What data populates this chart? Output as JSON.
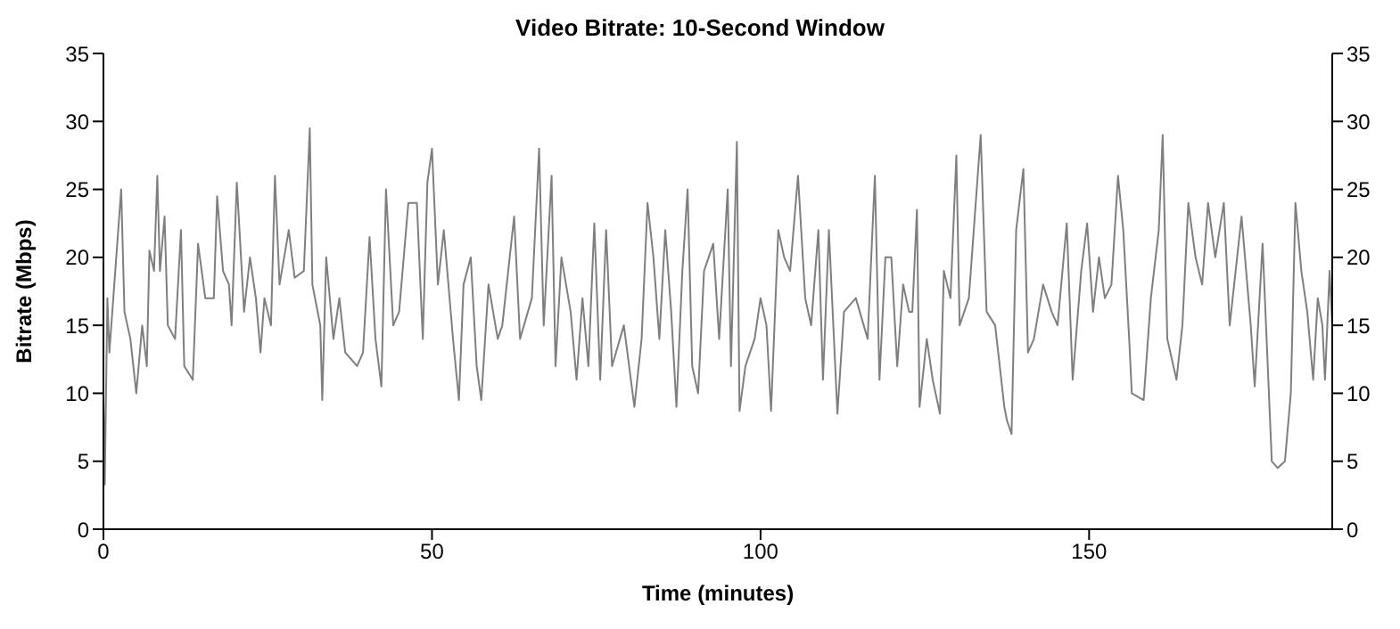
{
  "chart_data": {
    "type": "line",
    "title": "Video Bitrate: 10-Second Window",
    "xlabel": "Time (minutes)",
    "ylabel": "Bitrate (Mbps)",
    "xlim": [
      0,
      187
    ],
    "xticks": [
      0,
      50,
      100,
      150
    ],
    "ylim": [
      0,
      35
    ],
    "yticks": [
      0,
      5,
      10,
      15,
      20,
      25,
      30,
      35
    ],
    "y2lim": [
      0,
      35
    ],
    "y2ticks": [
      0,
      5,
      10,
      15,
      20,
      25,
      30,
      35
    ],
    "grid": false,
    "legend": false,
    "marker": "none",
    "line_style": "solid",
    "x": [
      0,
      0.2,
      0.6,
      0.9,
      1.5,
      2.7,
      3.2,
      4.1,
      5,
      5.9,
      6.6,
      7,
      7.7,
      8.2,
      8.6,
      9.3,
      9.8,
      10.9,
      11.8,
      12.3,
      13.6,
      14.4,
      15.5,
      16.8,
      17.3,
      18.2,
      19.1,
      19.5,
      20.3,
      21.4,
      22.3,
      23.2,
      23.9,
      24.5,
      25.5,
      26.1,
      26.8,
      27.5,
      28.2,
      29.1,
      30.5,
      31.4,
      31.8,
      33,
      33.3,
      33.9,
      35,
      35.9,
      36.8,
      38.6,
      39.5,
      40.5,
      41.4,
      42.3,
      43,
      44.1,
      45,
      46.4,
      47.7,
      48.6,
      49.3,
      50,
      50.9,
      51.8,
      53.2,
      54.1,
      54.8,
      55.9,
      56.8,
      57.5,
      58.6,
      60,
      60.7,
      62.5,
      63.4,
      65.2,
      66.3,
      67,
      68.2,
      68.8,
      69.7,
      71.1,
      72,
      72.9,
      73.8,
      74.7,
      75.6,
      76.5,
      77.4,
      79.2,
      80.8,
      81.9,
      82.8,
      83.7,
      84.6,
      85.5,
      86.4,
      87.2,
      88.1,
      88.9,
      89.6,
      90.5,
      91.4,
      92.8,
      93.7,
      95,
      95.5,
      96.4,
      96.8,
      97.7,
      99.1,
      100,
      100.9,
      101.6,
      102.7,
      103.6,
      104.5,
      105.7,
      106.8,
      107.7,
      108.8,
      109.5,
      110.4,
      111.7,
      112.7,
      114.5,
      116.3,
      117.4,
      118.1,
      119,
      119.9,
      120.8,
      121.7,
      122.6,
      123.1,
      123.8,
      124.2,
      125.3,
      126.2,
      127.3,
      127.9,
      128.9,
      129.8,
      130.3,
      131.7,
      132.6,
      133.5,
      134.4,
      135.7,
      137.1,
      137.5,
      138.2,
      138.9,
      140,
      140.7,
      141.6,
      143,
      144.3,
      145.2,
      146.6,
      147.5,
      148.8,
      149.7,
      150.6,
      151.5,
      152.4,
      153.4,
      154.4,
      155.2,
      156.1,
      156.5,
      158.3,
      159.4,
      160.6,
      161.2,
      161.9,
      163.3,
      164.2,
      165.1,
      166.2,
      167.2,
      168.1,
      169.2,
      170.5,
      171.4,
      172.3,
      173.2,
      174.6,
      175.2,
      176.4,
      177.1,
      177.8,
      178.7,
      179.8,
      180.7,
      181.4,
      182.3,
      183.2,
      184.1,
      184.8,
      185.5,
      185.9,
      186.6,
      187
    ],
    "series": [
      {
        "color": "#7f7f7f",
        "values": [
          10,
          3.3,
          17,
          13,
          17,
          25,
          16,
          14,
          10,
          15,
          12,
          20.5,
          19,
          26,
          19,
          23,
          15,
          14,
          22,
          12,
          11,
          21,
          17,
          17,
          24.5,
          19,
          18,
          15,
          25.5,
          16,
          20,
          17,
          13,
          17,
          15,
          26,
          18,
          20,
          22,
          18.5,
          19,
          29.5,
          18,
          15,
          9.5,
          20,
          14,
          17,
          13,
          12,
          13,
          21.5,
          14,
          10.5,
          25,
          15,
          16,
          24,
          24,
          14,
          25.5,
          28,
          18,
          22,
          14,
          9.5,
          18,
          20,
          12,
          9.5,
          18,
          14,
          15,
          23,
          14,
          17,
          28,
          15,
          26,
          12,
          20,
          16,
          11,
          17,
          12,
          22.5,
          11,
          22,
          12,
          15,
          9,
          14,
          24,
          20,
          14,
          22,
          16,
          9,
          19,
          25,
          12,
          10,
          19,
          21,
          14,
          25,
          12,
          28.5,
          8.7,
          12,
          14,
          17,
          15,
          8.7,
          22,
          20,
          19,
          26,
          17,
          15,
          22,
          11,
          22,
          8.5,
          16,
          17,
          14,
          26,
          11,
          20,
          20,
          12,
          18,
          16,
          16,
          23.5,
          9,
          14,
          11,
          8.5,
          19,
          17,
          27.5,
          15,
          17,
          23,
          29,
          16,
          15,
          9,
          8,
          7,
          22,
          26.5,
          13,
          14,
          18,
          16,
          15,
          22.5,
          11,
          19,
          22.5,
          16,
          20,
          17,
          18,
          26,
          22,
          14,
          10,
          9.5,
          17,
          22,
          29,
          14,
          11,
          15,
          24,
          20,
          18,
          24,
          20,
          24,
          15,
          19,
          23,
          15,
          10.5,
          21,
          13,
          5,
          4.5,
          5,
          10,
          24,
          19,
          16,
          11,
          17,
          15,
          11,
          19,
          15
        ]
      }
    ]
  }
}
